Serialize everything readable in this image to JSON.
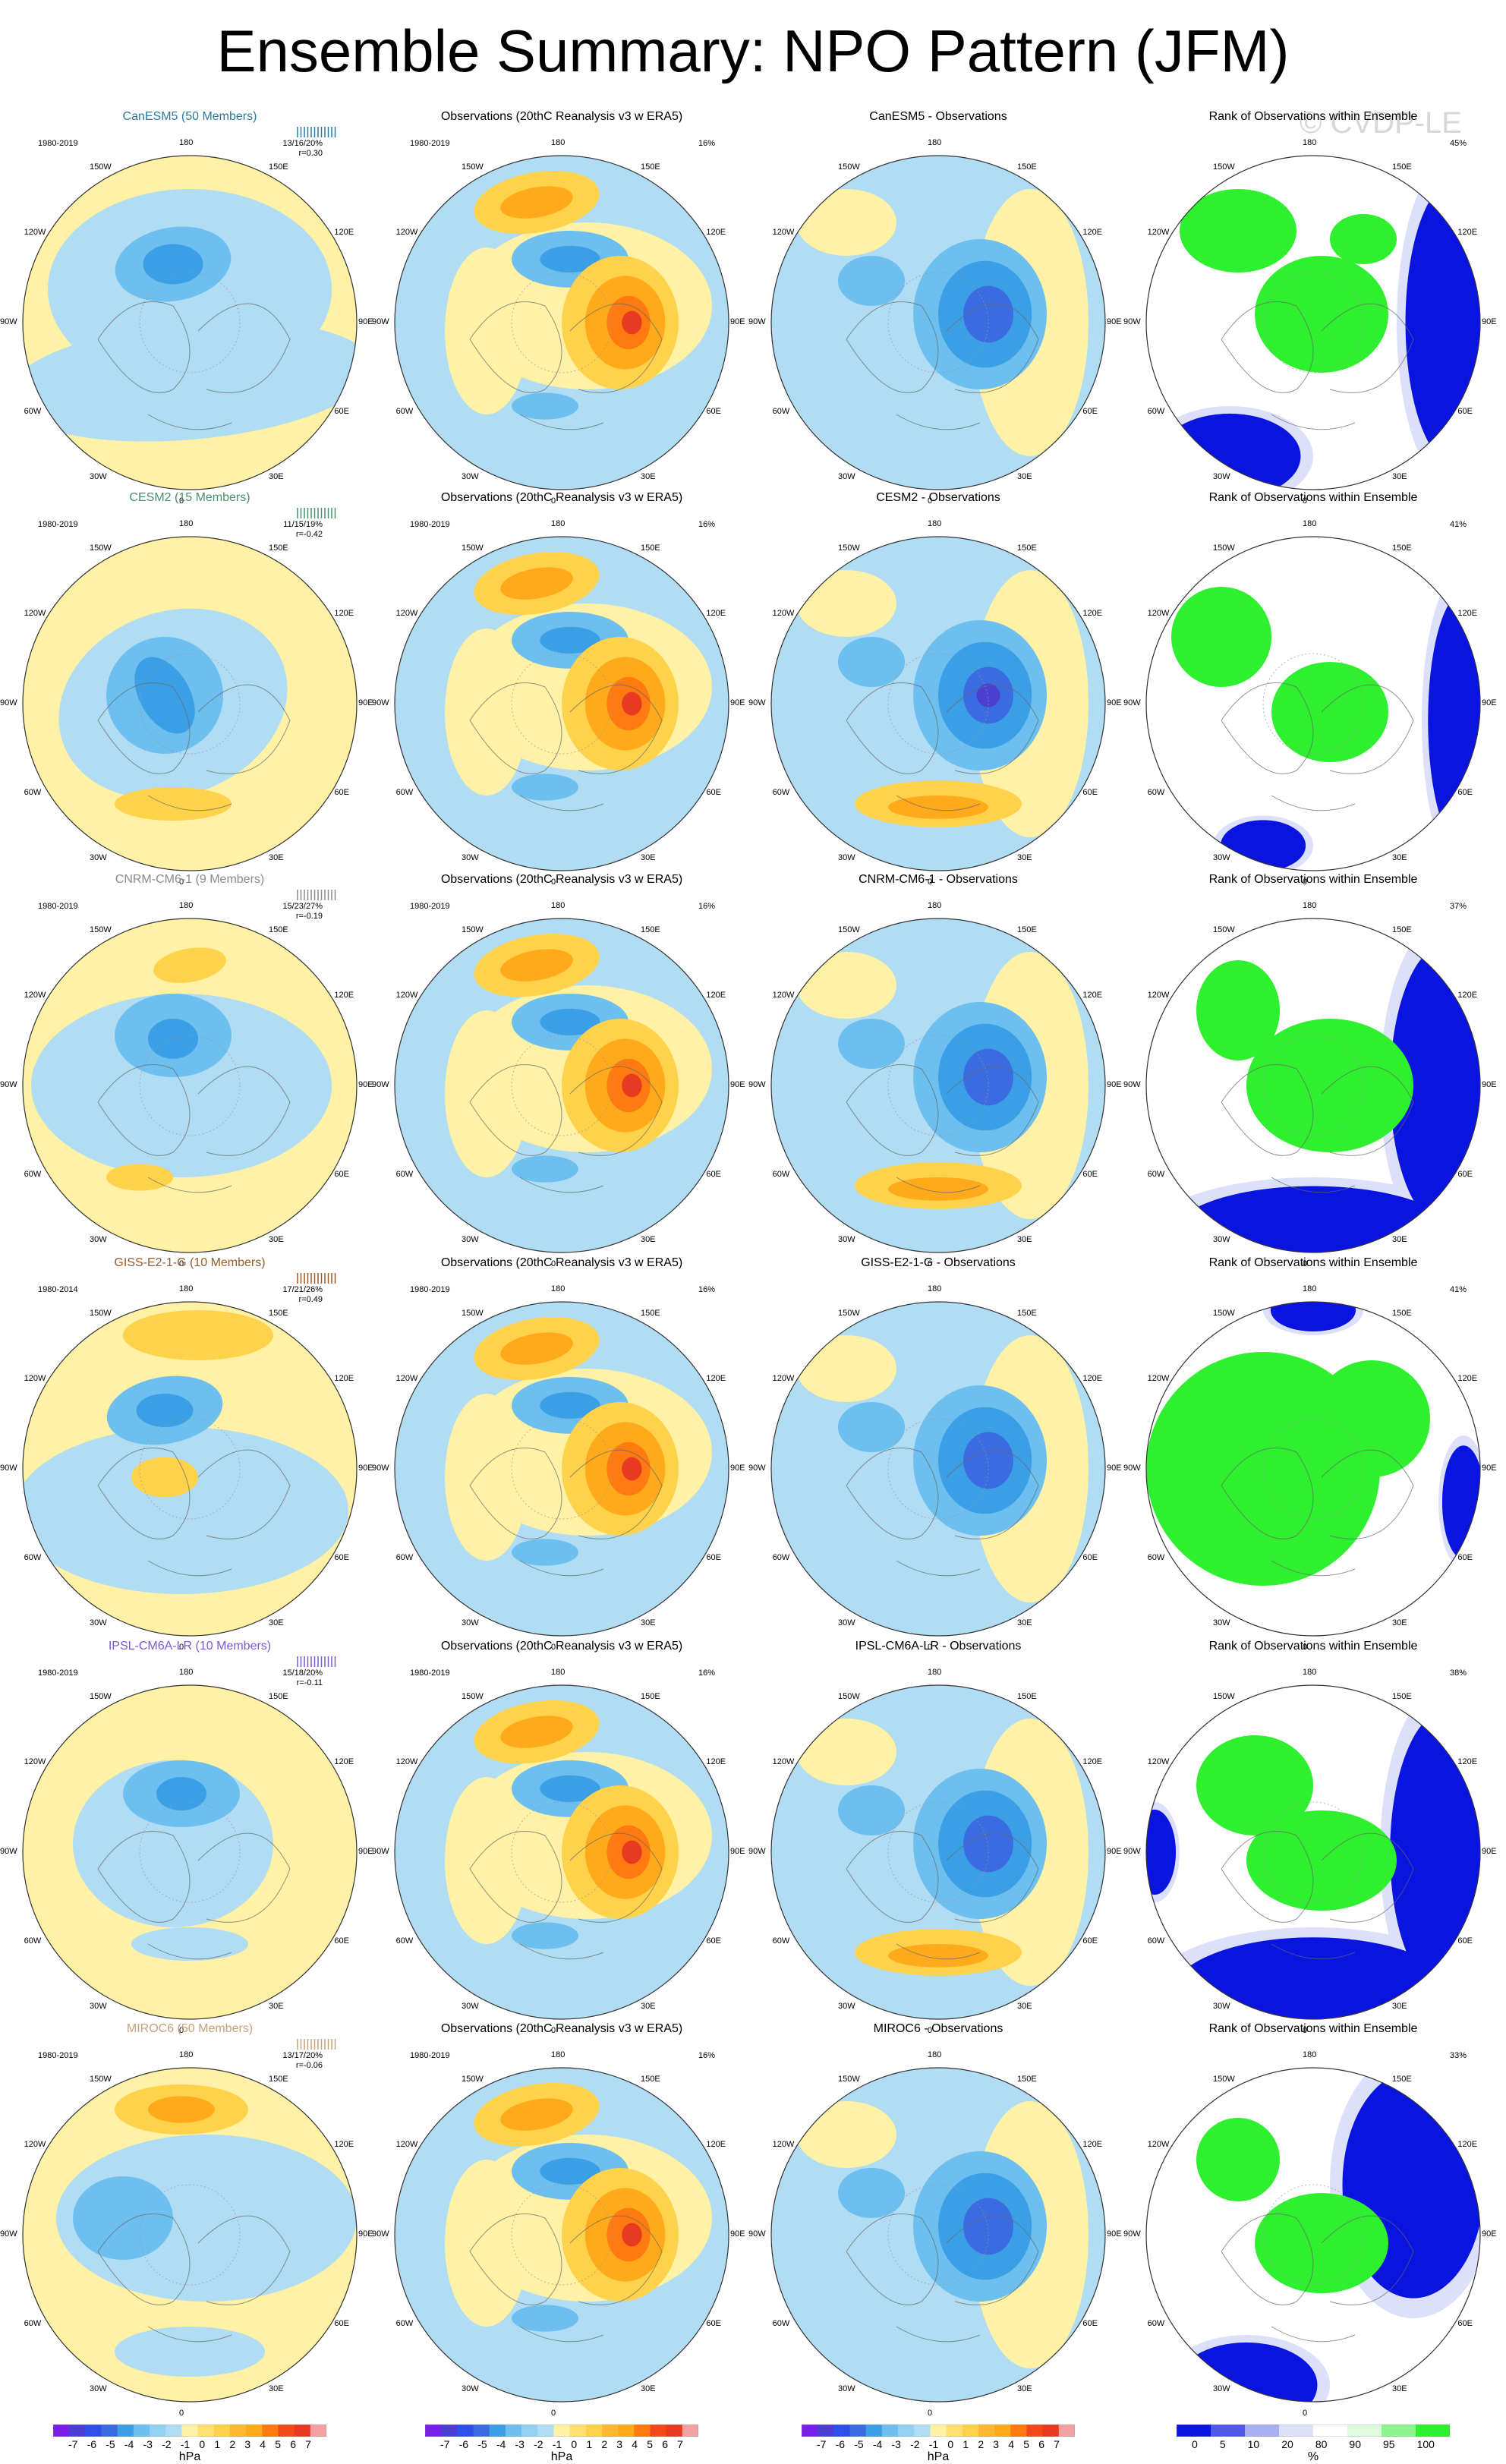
{
  "title": "Ensemble Summary: NPO Pattern (JFM)",
  "watermark": "© CVDP-LE",
  "lon_labels": [
    "180",
    "150E",
    "120E",
    "90E",
    "60E",
    "30E",
    "0",
    "30W",
    "60W",
    "90W",
    "120W",
    "150W"
  ],
  "colors": {
    "yellow": "#fff1a6",
    "lightblue": "#b0dcf4",
    "medblue": "#6cbfef",
    "blue": "#3b9fe6",
    "darkblue": "#3b6be0",
    "deepblue": "#4a3fd0",
    "orange1": "#ffd24c",
    "orange2": "#ffaa1a",
    "orange3": "#ff7a10",
    "red": "#e83a20",
    "green": "#2ef02e",
    "rankblue": "#0a14e0",
    "ranklightblue": "#a8aef2",
    "ranklighter": "#dde0fb"
  },
  "rows": [
    {
      "model": "CanESM5 (50 Members)",
      "model_color": "#2a7a9e",
      "period": "1980-2019",
      "stats": "13/16/20%",
      "r": "r=0.30",
      "obs_pct": "16%",
      "diff_title": "CanESM5 - Observations",
      "rank_title": "Rank of Observations within Ensemble",
      "rank_pct": "45%"
    },
    {
      "model": "CESM2 (15 Members)",
      "model_color": "#4b8f6b",
      "period": "1980-2019",
      "stats": "11/15/19%",
      "r": "r=-0.42",
      "obs_pct": "16%",
      "diff_title": "CESM2 - Observations",
      "rank_title": "Rank of Observations within Ensemble",
      "rank_pct": "41%"
    },
    {
      "model": "CNRM-CM6-1 (9 Members)",
      "model_color": "#8a8a8a",
      "period": "1980-2019",
      "stats": "15/23/27%",
      "r": "r=-0.19",
      "obs_pct": "16%",
      "diff_title": "CNRM-CM6-1 - Observations",
      "rank_title": "Rank of Observations within Ensemble",
      "rank_pct": "37%"
    },
    {
      "model": "GISS-E2-1-G (10 Members)",
      "model_color": "#9a5a2a",
      "period": "1980-2014",
      "stats": "17/21/26%",
      "r": "r=0.49",
      "obs_pct": "16%",
      "diff_title": "GISS-E2-1-G - Observations",
      "rank_title": "Rank of Observations within Ensemble",
      "rank_pct": "41%"
    },
    {
      "model": "IPSL-CM6A-LR (10 Members)",
      "model_color": "#7a5ad2",
      "period": "1980-2019",
      "stats": "15/18/20%",
      "r": "r=-0.11",
      "obs_pct": "16%",
      "diff_title": "IPSL-CM6A-LR - Observations",
      "rank_title": "Rank of Observations within Ensemble",
      "rank_pct": "38%"
    },
    {
      "model": "MIROC6 (50 Members)",
      "model_color": "#c6a07a",
      "period": "1980-2019",
      "stats": "13/17/20%",
      "r": "r=-0.06",
      "obs_pct": "16%",
      "diff_title": "MIROC6 - Observations",
      "rank_title": "Rank of Observations within Ensemble",
      "rank_pct": "33%"
    }
  ],
  "obs_title": "Observations (20thC Reanalysis v3 w ERA5)",
  "obs_period": "1980-2019",
  "colorbar_hpa": {
    "labels": [
      "-7",
      "-6",
      "-5",
      "-4",
      "-3",
      "-2",
      "-1",
      "0",
      "1",
      "2",
      "3",
      "4",
      "5",
      "6",
      "7"
    ],
    "unit": "hPa",
    "colors": [
      "#7b1fe8",
      "#4a3fd0",
      "#2f50e8",
      "#3b6be0",
      "#3b9fe6",
      "#6cbfef",
      "#94d0f2",
      "#b0dcf4",
      "#fff1a6",
      "#ffe070",
      "#ffd24c",
      "#ffb830",
      "#ffaa1a",
      "#ff7a10",
      "#f04a18",
      "#e83a20",
      "#f2a0a0"
    ]
  },
  "colorbar_rank": {
    "labels": [
      "0",
      "5",
      "10",
      "20",
      "80",
      "90",
      "95",
      "100"
    ],
    "unit": "%",
    "colors": [
      "#0a14e0",
      "#5058e8",
      "#a8aef2",
      "#dde0fb",
      "#ffffff",
      "#dffbdf",
      "#8ef58e",
      "#2ef02e"
    ]
  }
}
